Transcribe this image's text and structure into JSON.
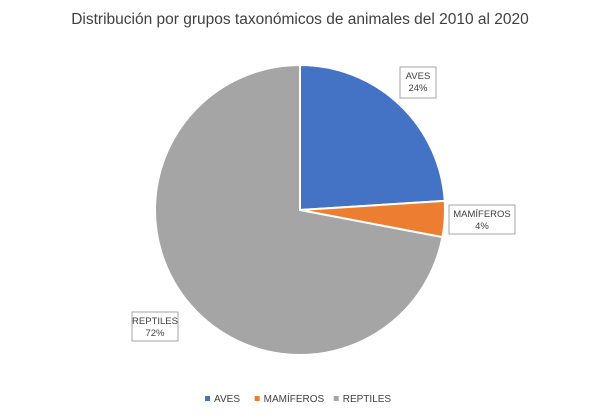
{
  "chart_data": {
    "type": "pie",
    "title": "Distribución por grupos taxonómicos de animales del 2010 al 2020",
    "slices": [
      {
        "label": "AVES",
        "value": 24,
        "value_label": "24%",
        "color": "#4472C4"
      },
      {
        "label": "MAMÍFEROS",
        "value": 4,
        "value_label": "4%",
        "color": "#ED7D31"
      },
      {
        "label": "REPTILES",
        "value": 72,
        "value_label": "72%",
        "color": "#A5A5A5"
      }
    ],
    "legend_position": "bottom"
  }
}
